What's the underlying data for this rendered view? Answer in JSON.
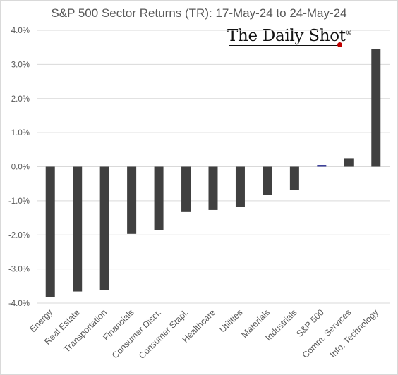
{
  "chart_data": {
    "type": "bar",
    "title": "S&P 500 Sector Returns (TR): 17-May-24 to 24-May-24",
    "xlabel": "",
    "ylabel": "",
    "categories": [
      "Energy",
      "Real Estate",
      "Transportation",
      "Financials",
      "Consumer Discr.",
      "Consumer Stapl.",
      "Healthcare",
      "Utilities",
      "Materials",
      "Industrials",
      "S&P 500",
      "Comm. Services",
      "Info. Technology"
    ],
    "values": [
      -3.83,
      -3.66,
      -3.62,
      -1.97,
      -1.85,
      -1.33,
      -1.27,
      -1.17,
      -0.83,
      -0.68,
      0.05,
      0.25,
      3.45
    ],
    "ylim": [
      -4,
      4
    ],
    "yticks": [
      -4,
      -3,
      -2,
      -1,
      0,
      1,
      2,
      3,
      4
    ],
    "ytick_labels": [
      "-4.0%",
      "-3.0%",
      "-2.0%",
      "-1.0%",
      "0.0%",
      "1.0%",
      "2.0%",
      "3.0%",
      "4.0%"
    ],
    "grid": true,
    "bar_color": "#404040",
    "highlight_category": "S&P 500",
    "highlight_color": "#2e3192",
    "gridline_color": "#d9d9d9"
  },
  "branding": {
    "text": "The Daily Shot",
    "mark": "®",
    "dot_color": "#c00000"
  }
}
